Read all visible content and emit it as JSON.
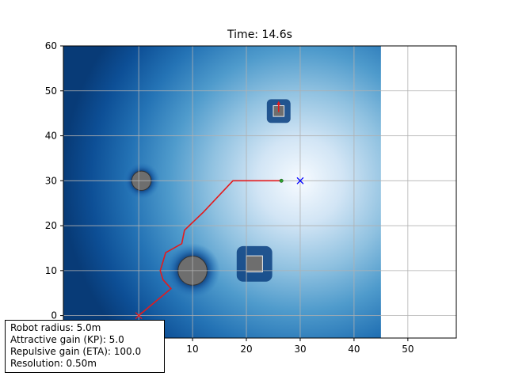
{
  "chart_data": {
    "type": "line",
    "title": "Time: 14.6s",
    "xlim": [
      -14,
      59
    ],
    "ylim": [
      -5,
      60
    ],
    "xticks": [
      0,
      10,
      20,
      30,
      40,
      50
    ],
    "yticks": [
      0,
      10,
      20,
      30,
      40,
      50,
      60
    ],
    "grid": true,
    "potential_field": {
      "x_range": [
        -14,
        45
      ],
      "y_range": [
        -5,
        60
      ],
      "minimum_at": [
        30,
        30
      ],
      "colormap": "Blues_r"
    },
    "obstacles": [
      {
        "shape": "circle",
        "x": 10,
        "y": 10,
        "radius": 2.7
      },
      {
        "shape": "circle",
        "x": 0.5,
        "y": 30,
        "radius": 1.8
      },
      {
        "shape": "square",
        "x": 21.5,
        "y": 11.5,
        "size": 3
      },
      {
        "shape": "square",
        "x": 26,
        "y": 45.5,
        "size": 2
      }
    ],
    "series": [
      {
        "type": "path",
        "color": "#e41a1c",
        "x": [
          0,
          6,
          4.5,
          4,
          5,
          8,
          8.5,
          12,
          17.5,
          26.5
        ],
        "y": [
          0,
          6,
          8,
          10,
          14,
          16,
          19,
          23,
          30,
          30
        ]
      }
    ],
    "start": {
      "x": 0,
      "y": 0,
      "marker": "x",
      "color": "#e41a1c"
    },
    "goal": {
      "x": 30,
      "y": 30,
      "marker": "x",
      "color": "#0000ff"
    },
    "robot": {
      "x": 26.5,
      "y": 30,
      "marker": "dot",
      "color": "#2ca02c"
    },
    "other_agent": {
      "x": 26,
      "y": 46,
      "heading_deg": 90,
      "color": "#e41a1c"
    }
  },
  "info": {
    "robot_radius": "Robot radius: 5.0m",
    "attractive_gain": "Attractive gain (KP): 5.0",
    "repulsive_gain": "Repulsive gain (ETA): 100.0",
    "resolution": "Resolution: 0.50m"
  }
}
